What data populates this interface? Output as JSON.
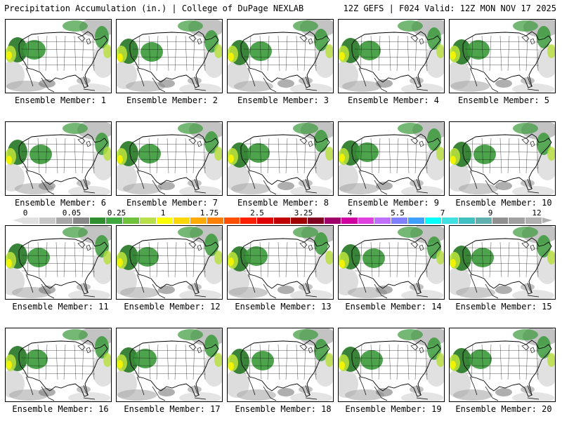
{
  "header": {
    "left_title": "Precipitation Accumulation (in.) | College of DuPage NEXLAB",
    "right_title": "12Z GEFS | F024 Valid: 12Z MON NOV 17 2025"
  },
  "members": [
    {
      "label": "Ensemble Member: 1"
    },
    {
      "label": "Ensemble Member: 2"
    },
    {
      "label": "Ensemble Member: 3"
    },
    {
      "label": "Ensemble Member: 4"
    },
    {
      "label": "Ensemble Member: 5"
    },
    {
      "label": "Ensemble Member: 6"
    },
    {
      "label": "Ensemble Member: 7"
    },
    {
      "label": "Ensemble Member: 8"
    },
    {
      "label": "Ensemble Member: 9"
    },
    {
      "label": "Ensemble Member: 10"
    },
    {
      "label": "Ensemble Member: 11"
    },
    {
      "label": "Ensemble Member: 12"
    },
    {
      "label": "Ensemble Member: 13"
    },
    {
      "label": "Ensemble Member: 14"
    },
    {
      "label": "Ensemble Member: 15"
    },
    {
      "label": "Ensemble Member: 16"
    },
    {
      "label": "Ensemble Member: 17"
    },
    {
      "label": "Ensemble Member: 18"
    },
    {
      "label": "Ensemble Member: 19"
    },
    {
      "label": "Ensemble Member: 20"
    }
  ],
  "colorbar": {
    "tick_labels": [
      "0",
      "0.05",
      "0.25",
      "1",
      "1.75",
      "2.5",
      "3.25",
      "4",
      "5.5",
      "7",
      "9",
      "12"
    ],
    "colors": [
      "#e0e0e0",
      "#c8c8c8",
      "#a8a8a8",
      "#888888",
      "#2f8f2f",
      "#3fa83f",
      "#6fc33a",
      "#b8e04a",
      "#ffff00",
      "#ffd700",
      "#ffaa00",
      "#ff8000",
      "#ff5000",
      "#ff2000",
      "#e00000",
      "#c00000",
      "#a00000",
      "#800020",
      "#a0006a",
      "#d000a0",
      "#e040e0",
      "#c070ff",
      "#8080ff",
      "#40a0ff",
      "#00ffff",
      "#40e0e0",
      "#40c0c0",
      "#60b0b0",
      "#909090",
      "#a0a0a0",
      "#b0b0b0"
    ],
    "left_arrow_color": "#e0e0e0",
    "right_arrow_color": "#b0b0b0"
  },
  "map_colors": {
    "light_gray": "#d9d9d9",
    "mid_gray": "#a9a9a9",
    "dark_gray": "#7a7a7a",
    "green": "#3a9a3a",
    "dark_green": "#2e7d2e",
    "yellow_green": "#b6df3c",
    "yellow": "#f4f400",
    "border": "#000000"
  }
}
